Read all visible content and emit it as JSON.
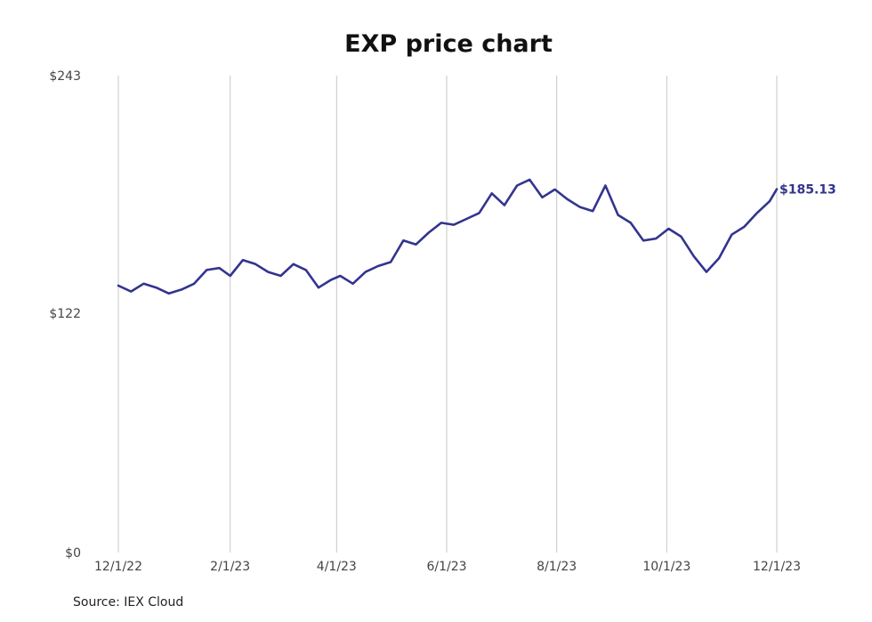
{
  "chart_data": {
    "type": "line",
    "title": "EXP price chart",
    "xlabel": "",
    "ylabel": "",
    "ylim": [
      0,
      243
    ],
    "yticks": [
      {
        "value": 243,
        "label": "$243"
      },
      {
        "value": 122,
        "label": "$122"
      },
      {
        "value": 0,
        "label": "$0"
      }
    ],
    "xticks": [
      "12/1/22",
      "2/1/23",
      "4/1/23",
      "6/1/23",
      "8/1/23",
      "10/1/23",
      "12/1/23"
    ],
    "grid": "vertical",
    "line_color": "#33348e",
    "last_value_label": "$185.13",
    "series": [
      {
        "x": [
          "2022-12-01",
          "2022-12-08",
          "2022-12-15",
          "2022-12-22",
          "2022-12-29",
          "2023-01-05",
          "2023-01-12",
          "2023-01-19",
          "2023-01-26",
          "2023-02-01",
          "2023-02-08",
          "2023-02-15",
          "2023-02-22",
          "2023-03-01",
          "2023-03-08",
          "2023-03-15",
          "2023-03-22",
          "2023-03-29",
          "2023-04-03",
          "2023-04-10",
          "2023-04-17",
          "2023-04-24",
          "2023-05-01",
          "2023-05-08",
          "2023-05-15",
          "2023-05-22",
          "2023-05-29",
          "2023-06-05",
          "2023-06-12",
          "2023-06-19",
          "2023-06-26",
          "2023-07-03",
          "2023-07-10",
          "2023-07-17",
          "2023-07-24",
          "2023-07-31",
          "2023-08-07",
          "2023-08-14",
          "2023-08-21",
          "2023-08-28",
          "2023-09-04",
          "2023-09-11",
          "2023-09-18",
          "2023-09-25",
          "2023-10-02",
          "2023-10-09",
          "2023-10-16",
          "2023-10-23",
          "2023-10-30",
          "2023-11-06",
          "2023-11-13",
          "2023-11-20",
          "2023-11-27",
          "2023-12-01"
        ],
        "values": [
          136,
          133,
          137,
          135,
          132,
          134,
          137,
          144,
          145,
          141,
          149,
          147,
          143,
          141,
          147,
          144,
          135,
          139,
          141,
          137,
          143,
          146,
          148,
          159,
          157,
          163,
          168,
          167,
          170,
          173,
          183,
          177,
          187,
          190,
          181,
          185,
          180,
          176,
          174,
          187,
          172,
          168,
          159,
          160,
          165,
          161,
          151,
          143,
          150,
          162,
          166,
          173,
          179,
          185.13
        ]
      }
    ]
  },
  "source": "Source: IEX Cloud"
}
